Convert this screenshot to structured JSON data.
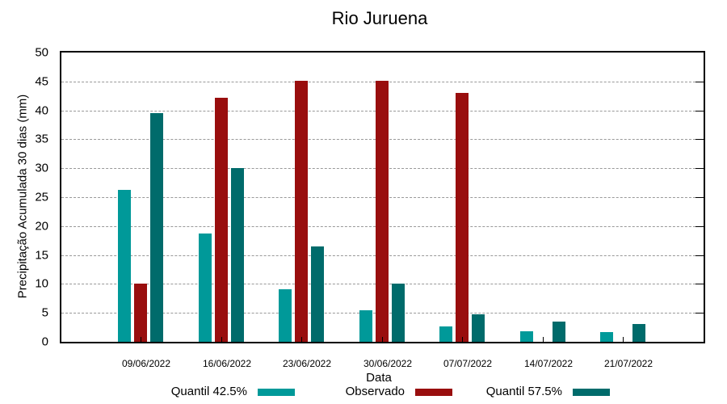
{
  "chart_data": {
    "type": "bar",
    "title": "Rio Juruena",
    "xlabel": "Data",
    "ylabel": "Precipitação Acumulada 30 dias (mm)",
    "ylim": [
      0,
      50
    ],
    "yticks": [
      0,
      5,
      10,
      15,
      20,
      25,
      30,
      35,
      40,
      45,
      50
    ],
    "grid": true,
    "legend_position": "bottom",
    "categories": [
      "09/06/2022",
      "16/06/2022",
      "23/06/2022",
      "30/06/2022",
      "07/07/2022",
      "14/07/2022",
      "21/07/2022"
    ],
    "series": [
      {
        "name": "Quantil 42.5%",
        "color": "#009999",
        "values": [
          26.3,
          18.7,
          9.1,
          5.5,
          2.7,
          1.8,
          1.7
        ]
      },
      {
        "name": "Observado",
        "color": "#990e0e",
        "values": [
          10.0,
          42.2,
          45.1,
          45.1,
          43.0,
          null,
          null
        ]
      },
      {
        "name": "Quantil 57.5%",
        "color": "#006b6b",
        "values": [
          39.5,
          30.0,
          16.5,
          10.1,
          4.8,
          3.5,
          3.1
        ]
      }
    ]
  }
}
